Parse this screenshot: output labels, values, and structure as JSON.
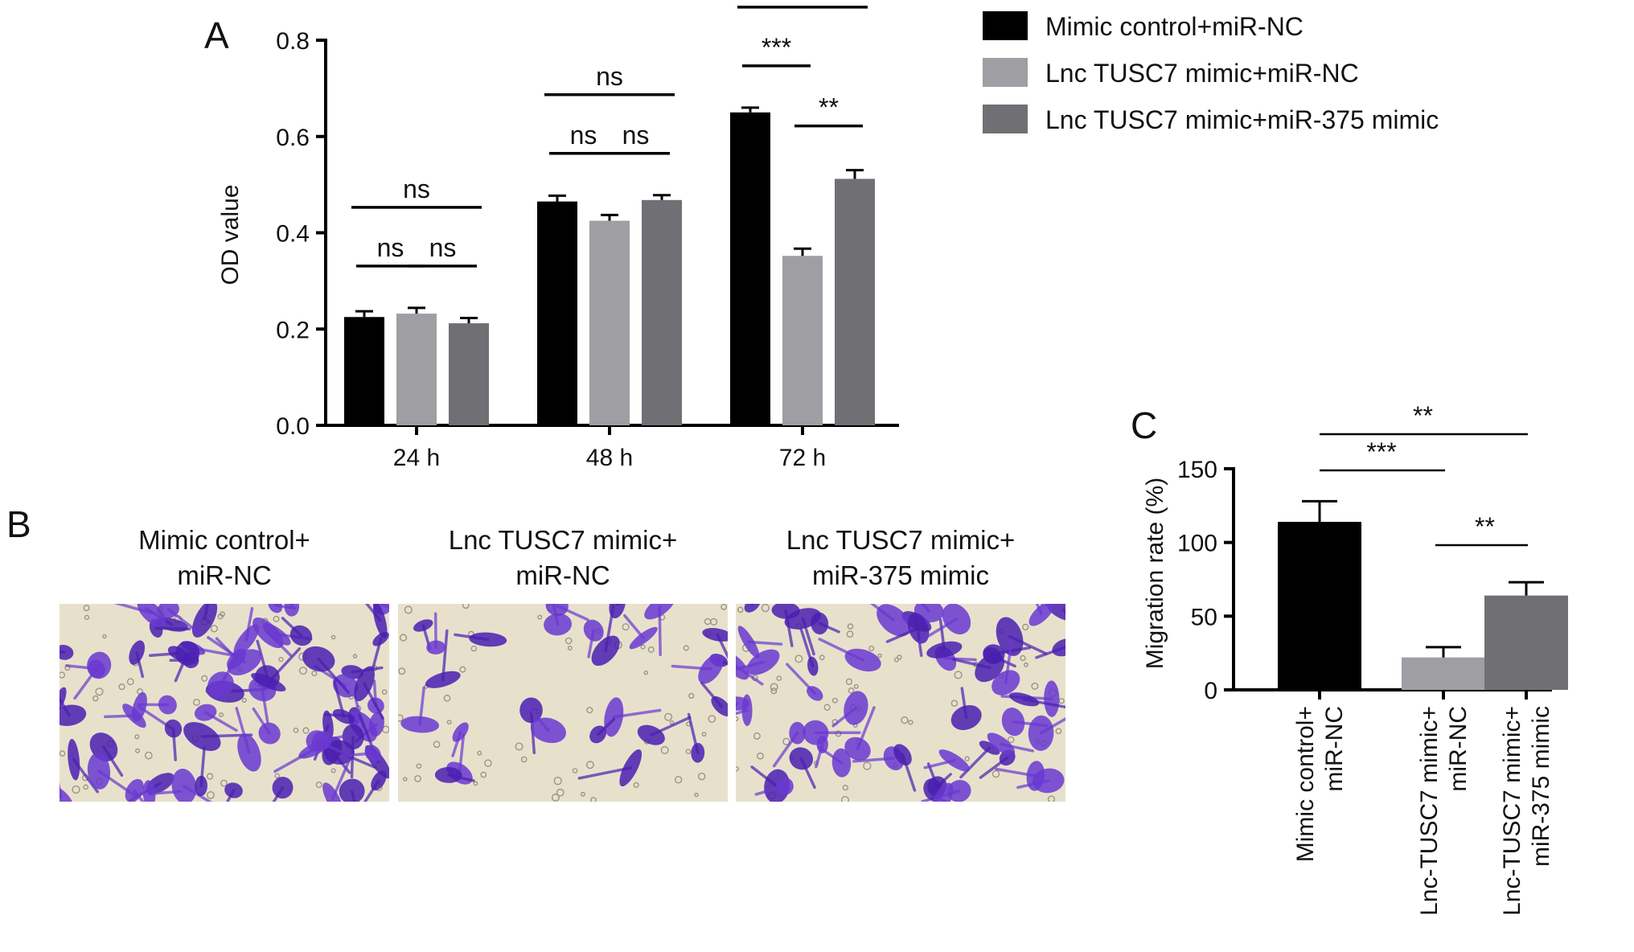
{
  "panel_labels": {
    "a": "A",
    "b": "B",
    "c": "C"
  },
  "colors": {
    "series1": "#000000",
    "series2": "#9e9ea3",
    "series3": "#707074",
    "stain_bg": "#e7e1cc",
    "stain_cell": "#6a38d0",
    "stain_cell_dark": "#4a1fb0"
  },
  "chart_data": [
    {
      "type": "bar",
      "panel": "A",
      "categories": [
        "24 h",
        "48 h",
        "72 h"
      ],
      "series": [
        {
          "name": "Mimic control+miR-NC",
          "values": [
            0.225,
            0.465,
            0.65
          ],
          "errors": [
            0.012,
            0.012,
            0.01
          ]
        },
        {
          "name": "Lnc TUSC7 mimic+miR-NC",
          "values": [
            0.232,
            0.425,
            0.352
          ],
          "errors": [
            0.012,
            0.012,
            0.015
          ]
        },
        {
          "name": "Lnc TUSC7 mimic+miR-375 mimic",
          "values": [
            0.212,
            0.468,
            0.512
          ],
          "errors": [
            0.011,
            0.01,
            0.018
          ]
        }
      ],
      "ylabel": "OD value",
      "ylim": [
        0,
        0.8
      ],
      "yticks": [
        "0.0",
        "0.2",
        "0.4",
        "0.6",
        "0.8"
      ],
      "significance": [
        {
          "group": 0,
          "from": 0,
          "to": 2,
          "label": "ns"
        },
        {
          "group": 0,
          "from": 0,
          "to": 1,
          "label": "ns"
        },
        {
          "group": 0,
          "from": 1,
          "to": 2,
          "label": "ns"
        },
        {
          "group": 1,
          "from": 0,
          "to": 2,
          "label": "ns"
        },
        {
          "group": 1,
          "from": 0,
          "to": 1,
          "label": "ns"
        },
        {
          "group": 1,
          "from": 1,
          "to": 2,
          "label": "ns"
        },
        {
          "group": 2,
          "from": 0,
          "to": 2,
          "label": "**"
        },
        {
          "group": 2,
          "from": 0,
          "to": 1,
          "label": "***"
        },
        {
          "group": 2,
          "from": 1,
          "to": 2,
          "label": "**"
        }
      ],
      "legend": "top-right"
    },
    {
      "type": "bar",
      "panel": "C",
      "categories": [
        "Mimic control+\nmiR-NC",
        "Lnc-TUSC7 mimic+\nmiR-NC",
        "Lnc-TUSC7 mimic+\nmiR-375 mimic"
      ],
      "values": [
        114,
        22,
        64
      ],
      "errors": [
        14,
        7,
        9
      ],
      "colors": [
        "#000000",
        "#9e9ea3",
        "#707074"
      ],
      "ylabel": "Migration rate (%)",
      "ylim": [
        0,
        150
      ],
      "yticks": [
        "0",
        "50",
        "100",
        "150"
      ],
      "significance": [
        {
          "from": 0,
          "to": 2,
          "label": "**"
        },
        {
          "from": 0,
          "to": 1,
          "label": "***"
        },
        {
          "from": 1,
          "to": 2,
          "label": "**"
        }
      ]
    }
  ],
  "panel_b": {
    "captions": [
      "Mimic control+\nmiR-NC",
      "Lnc TUSC7 mimic+\nmiR-NC",
      "Lnc TUSC7 mimic+\nmiR-375 mimic"
    ],
    "cell_density": [
      0.95,
      0.35,
      0.7
    ]
  }
}
